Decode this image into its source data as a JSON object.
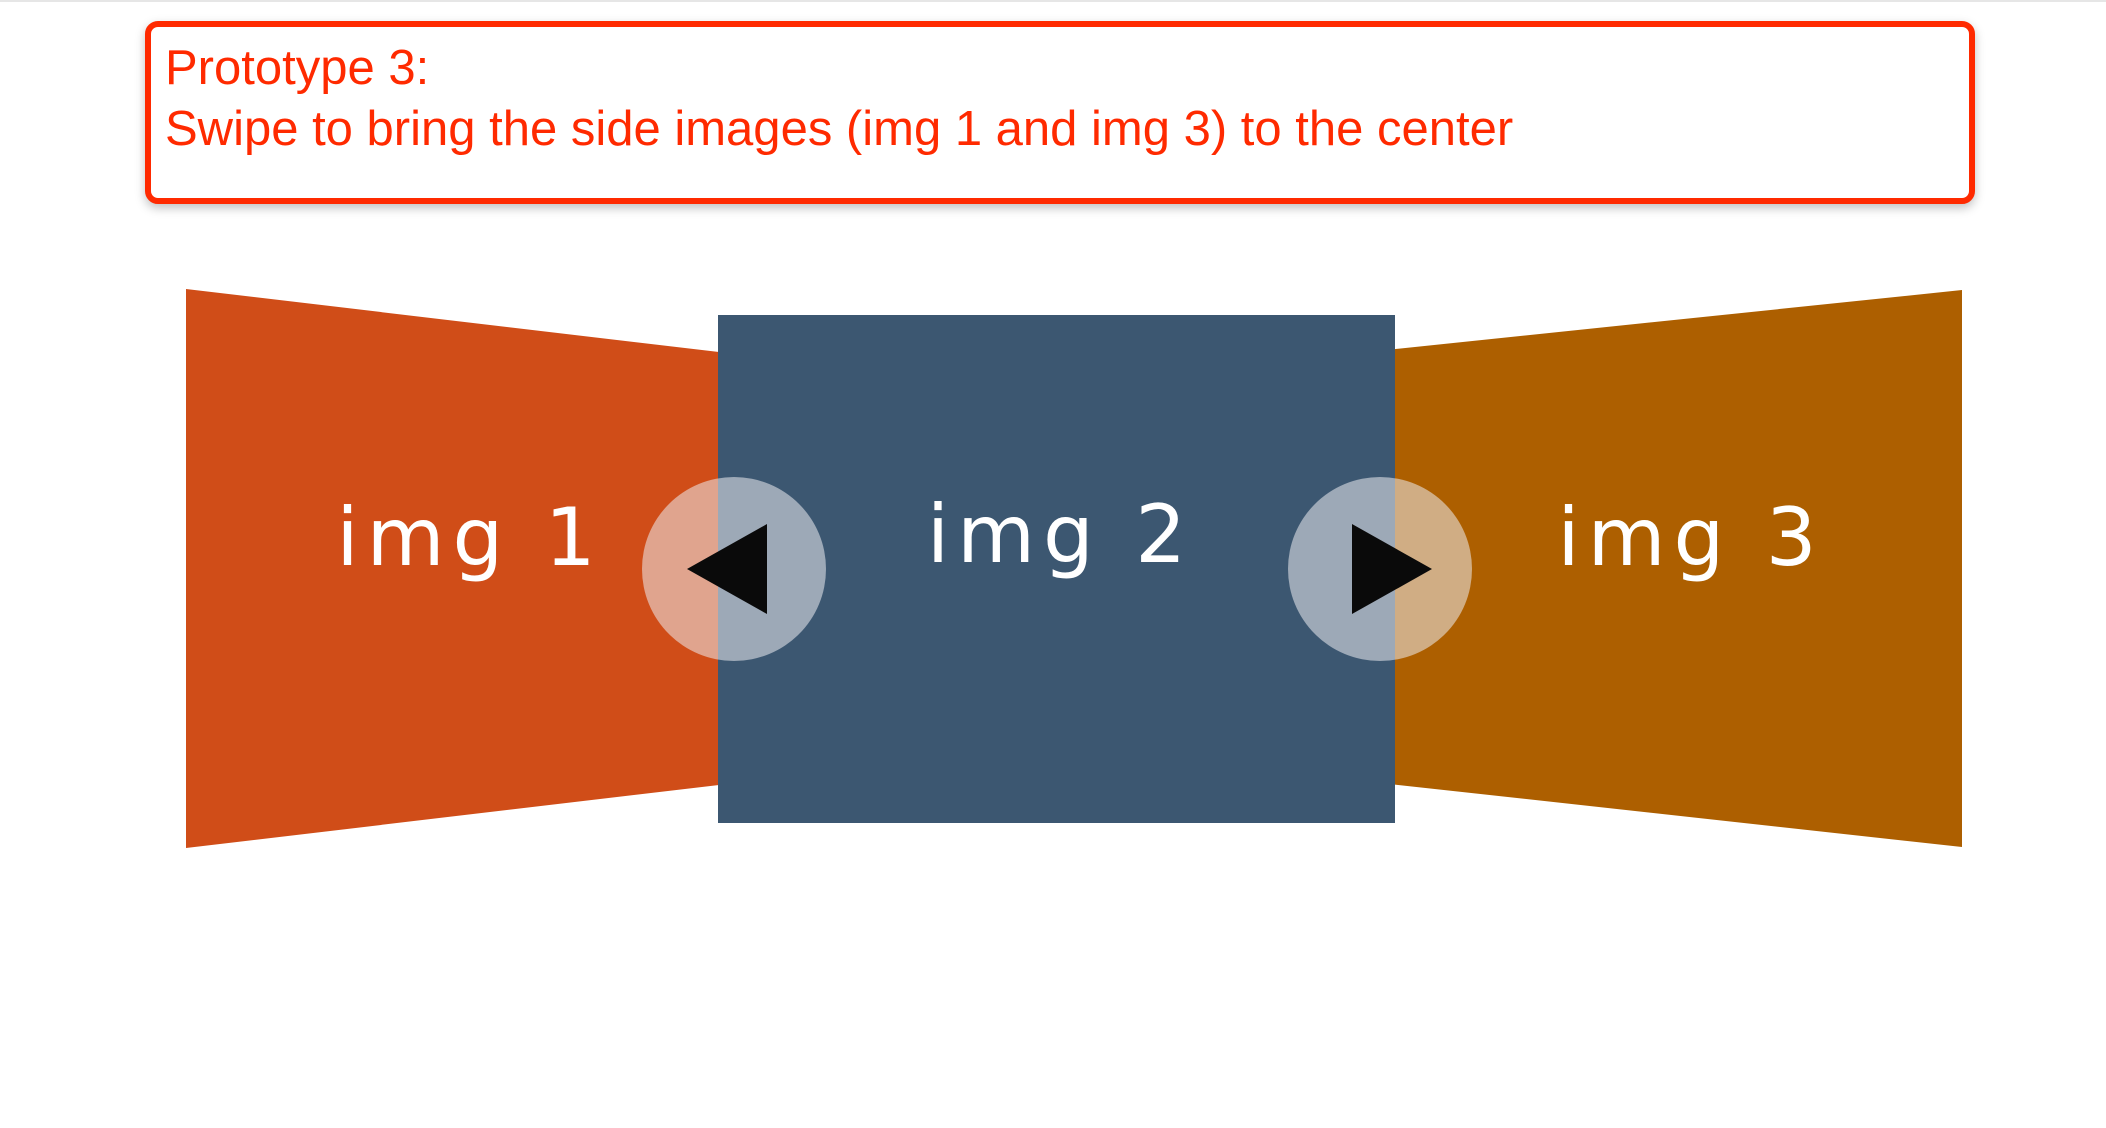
{
  "note": {
    "title": "Prototype 3:",
    "instruction": "Swipe to bring the side images (img 1 and img 3) to the center",
    "color": "#ff2a00"
  },
  "carousel": {
    "slides": [
      {
        "label": "img 1",
        "color": "#d04d18",
        "position": "left"
      },
      {
        "label": "img 2",
        "color": "#3c5771",
        "position": "center"
      },
      {
        "label": "img 3",
        "color": "#ad5f00",
        "position": "right"
      }
    ],
    "prev_icon": "triangle-left-icon",
    "next_icon": "triangle-right-icon"
  }
}
